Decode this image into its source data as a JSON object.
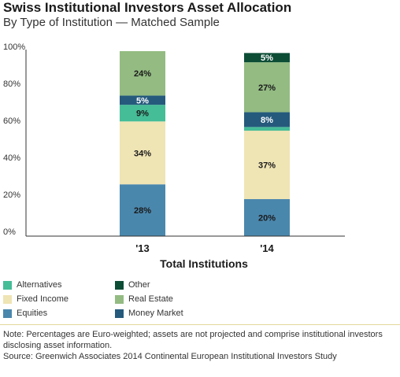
{
  "chart_data": {
    "type": "bar",
    "stacked": true,
    "title": "Swiss Institutional Investors Asset Allocation",
    "subtitle": "By Type of Institution — Matched Sample",
    "xlabel": "Total Institutions",
    "ylabel": "",
    "ylim": [
      0,
      100
    ],
    "y_ticks": [
      "0%",
      "20%",
      "40%",
      "60%",
      "80%",
      "100%"
    ],
    "categories": [
      "'13",
      "'14"
    ],
    "series": [
      {
        "name": "Equities",
        "color": "#4a87ad",
        "values": [
          28,
          20
        ],
        "labels": [
          "28%",
          "20%"
        ]
      },
      {
        "name": "Fixed Income",
        "color": "#efe4b4",
        "values": [
          34,
          37
        ],
        "labels": [
          "34%",
          "37%"
        ]
      },
      {
        "name": "Alternatives",
        "color": "#45bd97",
        "values": [
          9,
          2
        ],
        "labels": [
          "9%",
          ""
        ]
      },
      {
        "name": "Money Market",
        "color": "#255a7c",
        "values": [
          5,
          8
        ],
        "labels": [
          "5%",
          "8%"
        ]
      },
      {
        "name": "Real Estate",
        "color": "#93bb82",
        "values": [
          24,
          27
        ],
        "labels": [
          "24%",
          "27%"
        ]
      },
      {
        "name": "Other",
        "color": "#0d4d36",
        "values": [
          0,
          5
        ],
        "labels": [
          "",
          "5%"
        ]
      }
    ],
    "grid": false,
    "legend_placement": "bottom-left"
  },
  "legend": {
    "items": [
      {
        "label": "Alternatives",
        "color": "#45bd97"
      },
      {
        "label": "Fixed Income",
        "color": "#efe4b4"
      },
      {
        "label": "Equities",
        "color": "#4a87ad"
      },
      {
        "label": "Other",
        "color": "#0d4d36"
      },
      {
        "label": "Real Estate",
        "color": "#93bb82"
      },
      {
        "label": "Money Market",
        "color": "#255a7c"
      }
    ]
  },
  "notes": {
    "note": "Note: Percentages are Euro-weighted; assets are not projected and comprise institutional investors disclosing asset information.",
    "source": "Source: Greenwich Associates 2014 Continental European Institutional Investors Study"
  }
}
